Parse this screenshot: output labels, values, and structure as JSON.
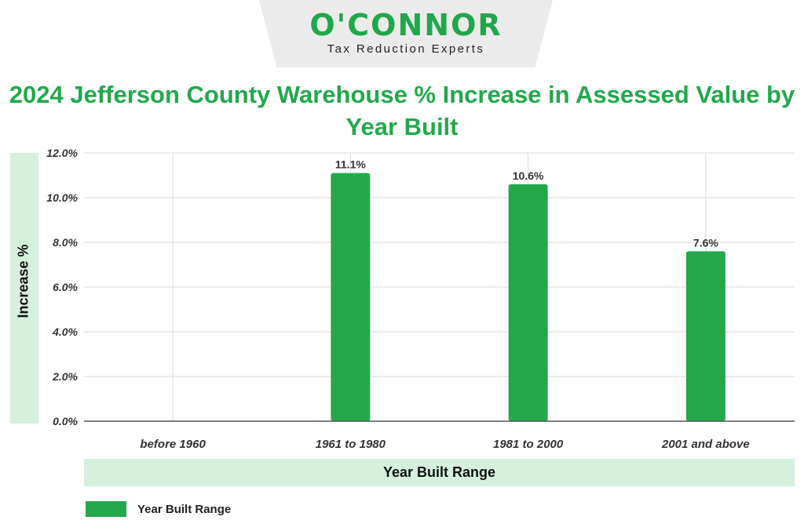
{
  "brand": {
    "name": "O'CONNOR",
    "tagline": "Tax Reduction Experts"
  },
  "colors": {
    "bar": "#24a84a",
    "title": "#22a84b",
    "band": "#d5f0dd",
    "grid": "#d9d9d9"
  },
  "chart_data": {
    "type": "bar",
    "title": "2024 Jefferson County Warehouse % Increase in Assessed Value by Year Built",
    "xlabel": "Year Built Range",
    "ylabel": "Increase %",
    "categories": [
      "before 1960",
      "1961 to 1980",
      "1981 to 2000",
      "2001 and above"
    ],
    "series": [
      {
        "name": "Year Built Range",
        "values": [
          null,
          11.1,
          10.6,
          7.6
        ]
      }
    ],
    "data_labels": [
      "",
      "11.1%",
      "10.6%",
      "7.6%"
    ],
    "yticks": [
      "0.0%",
      "2.0%",
      "4.0%",
      "6.0%",
      "8.0%",
      "10.0%",
      "12.0%"
    ],
    "ylim": [
      0,
      12
    ],
    "grid": true,
    "legend": "bottom-left"
  }
}
